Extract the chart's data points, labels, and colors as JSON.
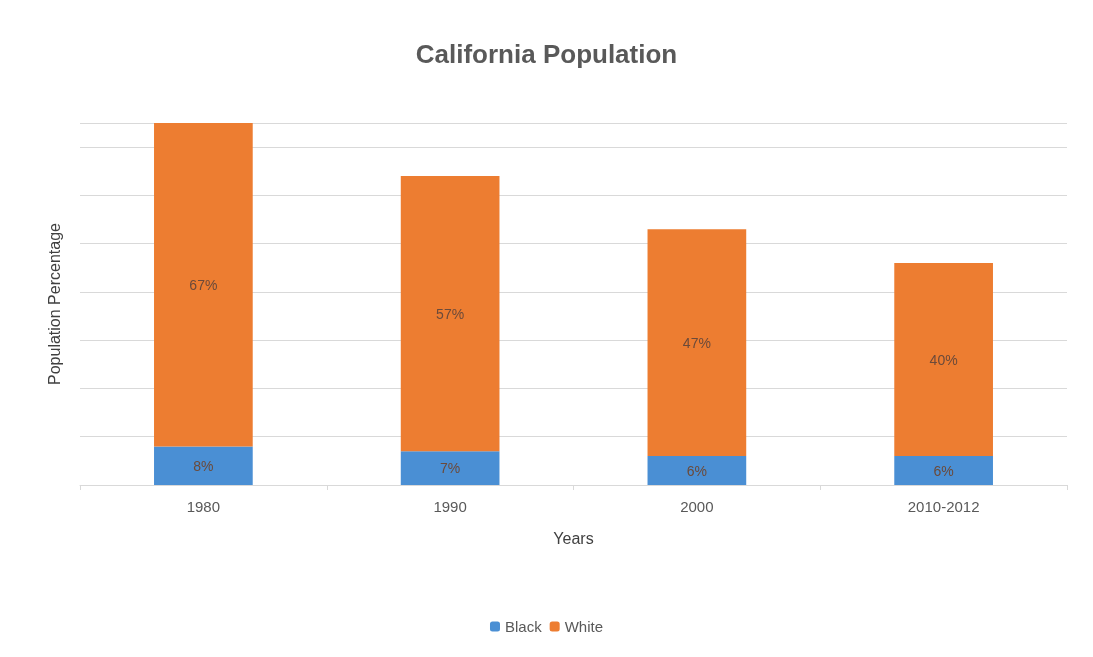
{
  "chart_data": {
    "type": "bar",
    "title": "California Population",
    "xlabel": "Years",
    "ylabel": "Population Percentage",
    "categories": [
      "1980",
      "1990",
      "2000",
      "2010-2012"
    ],
    "stacked": true,
    "tick_labels": "x",
    "series": [
      {
        "name": "Black",
        "color": "#4a8fd4",
        "values": [
          8,
          7,
          6,
          6
        ],
        "value_labels": [
          "8%",
          "7%",
          "6%",
          "6%"
        ]
      },
      {
        "name": "White",
        "color": "#ed7d31",
        "values": [
          67,
          57,
          47,
          40
        ],
        "value_labels": [
          "67%",
          "57%",
          "47%",
          "40%"
        ]
      }
    ],
    "grid": "y",
    "legend": "bottom"
  }
}
